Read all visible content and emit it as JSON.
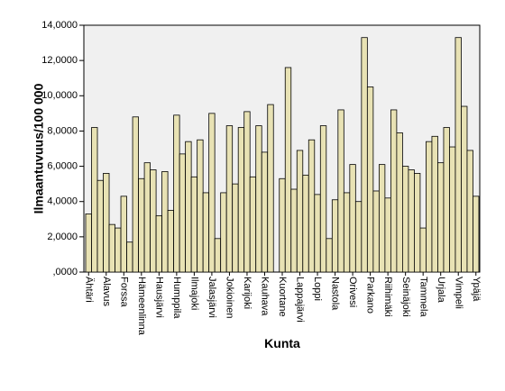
{
  "chart_data": {
    "type": "bar",
    "x_label": "Kunta",
    "y_label": "Ilmaantuvuus/100 000",
    "color": "#e8e2b4",
    "categories": [
      "Ähtäri",
      null,
      null,
      "Alavus",
      null,
      null,
      "Forssa",
      null,
      null,
      "Hämeenlinna",
      null,
      null,
      "Hausjärvi",
      null,
      null,
      "Humppila",
      null,
      null,
      "Ilmajoki",
      null,
      null,
      "Jalasjärvi",
      null,
      null,
      "Jokioinen",
      null,
      null,
      "Karijoki",
      null,
      null,
      "Kauhava",
      null,
      null,
      "Kuortane",
      null,
      null,
      "Lappajärvi",
      null,
      null,
      "Loppi",
      null,
      null,
      "Nastola",
      null,
      null,
      "Orivesi",
      null,
      null,
      "Parkano",
      null,
      null,
      "Riihimäki",
      null,
      null,
      "Seinäjoki",
      null,
      null,
      "Tammela",
      null,
      null,
      "Urjala",
      null,
      null,
      "Vimpeli",
      null,
      null,
      "Ypäjä"
    ],
    "values": [
      3.3,
      8.2,
      5.2,
      5.6,
      2.7,
      2.5,
      4.3,
      1.7,
      8.8,
      5.3,
      6.2,
      5.8,
      3.2,
      5.7,
      3.5,
      8.9,
      6.7,
      7.4,
      5.4,
      7.5,
      4.5,
      9.0,
      1.9,
      4.5,
      8.3,
      5.0,
      8.2,
      9.1,
      5.4,
      8.3,
      6.8,
      9.5,
      0,
      5.3,
      11.6,
      4.7,
      6.9,
      5.5,
      7.5,
      4.4,
      8.3,
      1.9,
      4.1,
      9.2,
      4.5,
      6.1,
      4.0,
      13.3,
      10.5,
      4.6,
      6.1,
      4.2,
      9.2,
      7.9,
      6.0,
      5.8,
      5.6,
      2.5,
      7.4,
      7.7,
      6.2,
      8.2,
      7.1,
      13.3,
      9.4,
      6.9,
      4.3
    ],
    "ylim": [
      0,
      14
    ],
    "yticks": [
      {
        "value": 0,
        "label": ",0000"
      },
      {
        "value": 2,
        "label": "2,0000"
      },
      {
        "value": 4,
        "label": "4,0000"
      },
      {
        "value": 6,
        "label": "6,0000"
      },
      {
        "value": 8,
        "label": "8,0000"
      },
      {
        "value": 10,
        "label": "10,0000"
      },
      {
        "value": 12,
        "label": "12,0000"
      },
      {
        "value": 14,
        "label": "14,0000"
      }
    ]
  }
}
